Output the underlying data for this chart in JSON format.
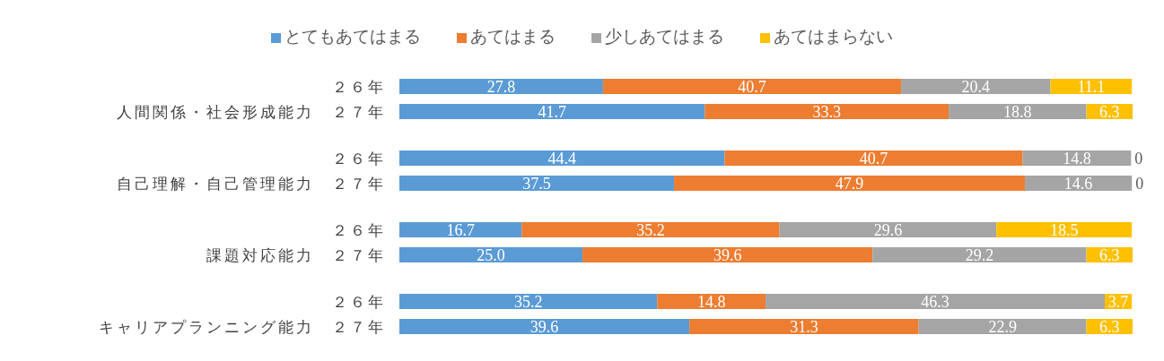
{
  "chart_data": {
    "type": "bar",
    "orientation": "horizontal",
    "stacked": true,
    "legend": "top",
    "categories": [
      "２６年",
      "人間関係・社会形成能力　２７年",
      "２６年",
      "自己理解・自己管理能力　２７年",
      "２６年",
      "課題対応能力　２７年",
      "２６年",
      "キャリアプランニング能力　２７年"
    ],
    "series": [
      {
        "name": "とてもあてはまる",
        "color": "#5b9bd5",
        "values": [
          27.8,
          41.7,
          44.4,
          37.5,
          16.7,
          25.0,
          35.2,
          39.6
        ],
        "value_labels": [
          "27.8",
          "41.7",
          "44.4",
          "37.5",
          "16.7",
          "25.0",
          "35.2",
          "39.6"
        ]
      },
      {
        "name": "あてはまる",
        "color": "#ed7d31",
        "values": [
          40.7,
          33.3,
          40.7,
          47.9,
          35.2,
          39.6,
          14.8,
          31.3
        ],
        "value_labels": [
          "40.7",
          "33.3",
          "40.7",
          "47.9",
          "35.2",
          "39.6",
          "14.8",
          "31.3"
        ]
      },
      {
        "name": "少しあてはまる",
        "color": "#a5a5a5",
        "values": [
          20.4,
          18.8,
          14.8,
          14.6,
          29.6,
          29.2,
          46.3,
          22.9
        ],
        "value_labels": [
          "20.4",
          "18.8",
          "14.8",
          "14.6",
          "29.6",
          "29.2",
          "46.3",
          "22.9"
        ]
      },
      {
        "name": "あてはまらない",
        "color": "#ffc000",
        "values": [
          11.1,
          6.3,
          0,
          0,
          18.5,
          6.3,
          3.7,
          6.3
        ],
        "value_labels": [
          "11.1",
          "6.3",
          "0",
          "0",
          "18.5",
          "6.3",
          "3.7",
          "6.3"
        ]
      }
    ]
  }
}
